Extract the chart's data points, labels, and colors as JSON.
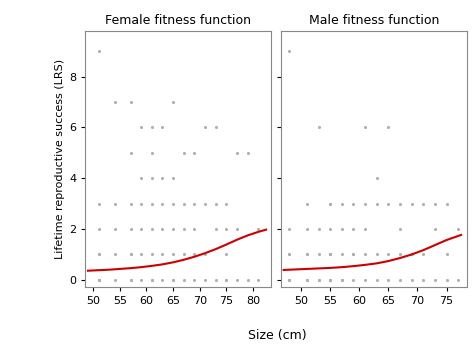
{
  "title_left": "Female fitness function",
  "title_right": "Male fitness function",
  "ylabel": "Lifetime reproductive success (LRS)",
  "xlabel": "Size (cm)",
  "background_color": "#ffffff",
  "plot_bg_color": "#ffffff",
  "point_color": "#b0b0b0",
  "curve_color": "#cc0000",
  "female_xlim": [
    48.5,
    83.5
  ],
  "male_xlim": [
    46.5,
    78.5
  ],
  "ylim": [
    -0.3,
    9.8
  ],
  "yticks": [
    0,
    2,
    4,
    6,
    8
  ],
  "female_xticks": [
    50,
    55,
    60,
    65,
    70,
    75,
    80
  ],
  "male_xticks": [
    50,
    55,
    60,
    65,
    70,
    75
  ],
  "female_points_x": [
    51,
    51,
    51,
    51,
    51,
    51,
    51,
    51,
    51,
    54,
    54,
    54,
    54,
    54,
    57,
    57,
    57,
    57,
    57,
    57,
    57,
    57,
    59,
    59,
    59,
    59,
    59,
    59,
    61,
    61,
    61,
    61,
    61,
    61,
    61,
    61,
    63,
    63,
    63,
    63,
    63,
    63,
    65,
    65,
    65,
    65,
    65,
    65,
    65,
    67,
    67,
    67,
    67,
    67,
    69,
    69,
    69,
    69,
    69,
    71,
    71,
    71,
    71,
    73,
    73,
    73,
    73,
    75,
    75,
    75,
    75,
    75,
    77,
    77,
    77,
    79,
    79,
    81,
    81
  ],
  "female_points_y": [
    0,
    0,
    0,
    0,
    1,
    1,
    2,
    3,
    9,
    0,
    1,
    2,
    3,
    7,
    0,
    0,
    1,
    1,
    2,
    3,
    5,
    7,
    0,
    1,
    2,
    3,
    4,
    6,
    0,
    0,
    1,
    2,
    3,
    4,
    5,
    6,
    0,
    1,
    2,
    3,
    4,
    6,
    0,
    0,
    1,
    2,
    3,
    4,
    7,
    0,
    1,
    2,
    3,
    5,
    0,
    1,
    2,
    3,
    5,
    0,
    1,
    3,
    6,
    0,
    2,
    3,
    6,
    0,
    0,
    1,
    2,
    3,
    0,
    2,
    5,
    0,
    5,
    0,
    2
  ],
  "male_points_x": [
    48,
    48,
    48,
    48,
    48,
    48,
    48,
    51,
    51,
    51,
    51,
    51,
    51,
    53,
    53,
    53,
    53,
    53,
    55,
    55,
    55,
    55,
    55,
    55,
    55,
    55,
    55,
    57,
    57,
    57,
    57,
    57,
    59,
    59,
    59,
    59,
    59,
    61,
    61,
    61,
    61,
    61,
    63,
    63,
    63,
    63,
    65,
    65,
    65,
    65,
    67,
    67,
    67,
    67,
    69,
    69,
    69,
    71,
    71,
    71,
    73,
    73,
    73,
    75,
    75,
    75,
    77,
    77
  ],
  "male_points_y": [
    0,
    0,
    0,
    1,
    1,
    2,
    9,
    0,
    0,
    1,
    1,
    2,
    3,
    0,
    0,
    1,
    2,
    6,
    0,
    0,
    0,
    1,
    1,
    1,
    2,
    3,
    3,
    0,
    0,
    1,
    2,
    3,
    0,
    1,
    1,
    2,
    3,
    0,
    1,
    2,
    3,
    6,
    0,
    1,
    3,
    4,
    0,
    1,
    3,
    6,
    0,
    1,
    2,
    3,
    0,
    1,
    3,
    0,
    1,
    3,
    0,
    2,
    3,
    0,
    1,
    3,
    0,
    2
  ],
  "female_curve_x": [
    49,
    51,
    53,
    55,
    57,
    59,
    61,
    63,
    65,
    67,
    69,
    71,
    73,
    75,
    77,
    79,
    81,
    82.5
  ],
  "female_curve_y": [
    0.35,
    0.37,
    0.39,
    0.42,
    0.45,
    0.49,
    0.54,
    0.6,
    0.68,
    0.78,
    0.9,
    1.04,
    1.2,
    1.38,
    1.57,
    1.74,
    1.88,
    1.97
  ],
  "male_curve_x": [
    47,
    49,
    51,
    53,
    55,
    57,
    59,
    61,
    63,
    65,
    67,
    69,
    71,
    73,
    75,
    77,
    77.5
  ],
  "male_curve_y": [
    0.38,
    0.4,
    0.42,
    0.44,
    0.46,
    0.49,
    0.53,
    0.58,
    0.64,
    0.73,
    0.85,
    0.99,
    1.16,
    1.36,
    1.56,
    1.72,
    1.76
  ]
}
